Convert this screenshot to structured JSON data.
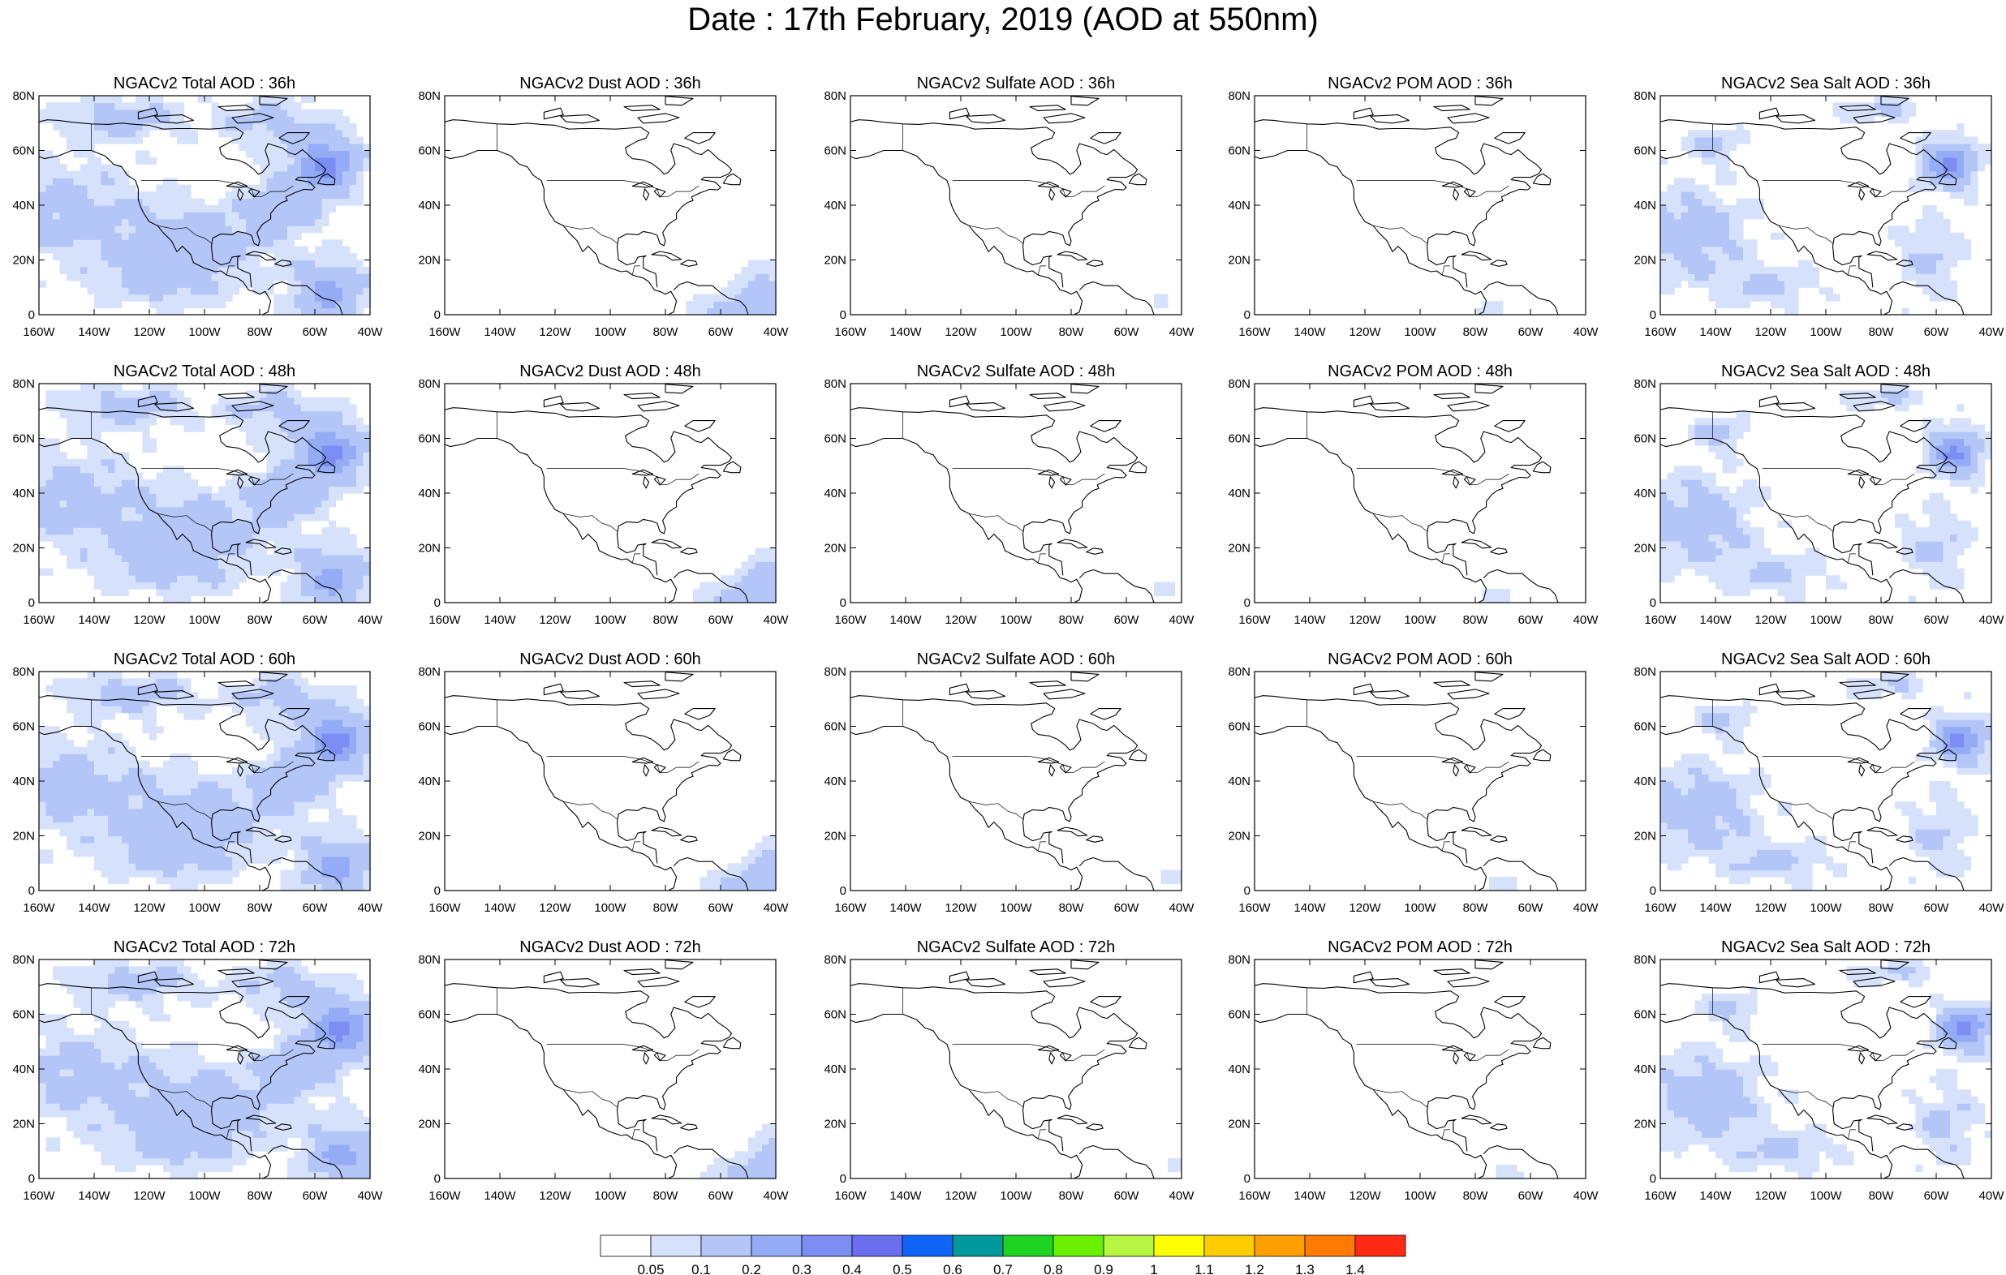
{
  "title": "Date : 17th February, 2019 (AOD at 550nm)",
  "lat_ticks": [
    "80N",
    "60N",
    "40N",
    "20N",
    "0"
  ],
  "lon_ticks": [
    "160W",
    "140W",
    "120W",
    "100W",
    "80W",
    "60W",
    "40W"
  ],
  "panels": [
    {
      "title": "NGACv2 Total AOD : 36h",
      "species": "total",
      "hour": 36
    },
    {
      "title": "NGACv2 Dust AOD : 36h",
      "species": "dust",
      "hour": 36
    },
    {
      "title": "NGACv2 Sulfate AOD : 36h",
      "species": "sulfate",
      "hour": 36
    },
    {
      "title": "NGACv2 POM AOD : 36h",
      "species": "pom",
      "hour": 36
    },
    {
      "title": "NGACv2 Sea Salt AOD : 36h",
      "species": "seasalt",
      "hour": 36
    },
    {
      "title": "NGACv2 Total AOD : 48h",
      "species": "total",
      "hour": 48
    },
    {
      "title": "NGACv2 Dust AOD : 48h",
      "species": "dust",
      "hour": 48
    },
    {
      "title": "NGACv2 Sulfate AOD : 48h",
      "species": "sulfate",
      "hour": 48
    },
    {
      "title": "NGACv2 POM AOD : 48h",
      "species": "pom",
      "hour": 48
    },
    {
      "title": "NGACv2 Sea Salt AOD : 48h",
      "species": "seasalt",
      "hour": 48
    },
    {
      "title": "NGACv2 Total AOD : 60h",
      "species": "total",
      "hour": 60
    },
    {
      "title": "NGACv2 Dust AOD : 60h",
      "species": "dust",
      "hour": 60
    },
    {
      "title": "NGACv2 Sulfate AOD : 60h",
      "species": "sulfate",
      "hour": 60
    },
    {
      "title": "NGACv2 POM AOD : 60h",
      "species": "pom",
      "hour": 60
    },
    {
      "title": "NGACv2 Sea Salt AOD : 60h",
      "species": "seasalt",
      "hour": 60
    },
    {
      "title": "NGACv2 Total AOD : 72h",
      "species": "total",
      "hour": 72
    },
    {
      "title": "NGACv2 Dust AOD : 72h",
      "species": "dust",
      "hour": 72
    },
    {
      "title": "NGACv2 Sulfate AOD : 72h",
      "species": "sulfate",
      "hour": 72
    },
    {
      "title": "NGACv2 POM AOD : 72h",
      "species": "pom",
      "hour": 72
    },
    {
      "title": "NGACv2 Sea Salt  AOD : 72h",
      "species": "seasalt",
      "hour": 72
    }
  ],
  "colorbar": {
    "labels": [
      "0.05",
      "0.1",
      "0.2",
      "0.3",
      "0.4",
      "0.5",
      "0.6",
      "0.7",
      "0.8",
      "0.9",
      "1",
      "1.1",
      "1.2",
      "1.3",
      "1.4"
    ],
    "colors": [
      "#ffffff",
      "#d6e2fb",
      "#b4c6f7",
      "#94acf5",
      "#7c8ef3",
      "#6a6ff0",
      "#0f63f7",
      "#00999c",
      "#1ed322",
      "#6bf000",
      "#b6f542",
      "#ffff00",
      "#ffcc00",
      "#ffa000",
      "#ff7a00",
      "#ff2a14"
    ]
  }
}
